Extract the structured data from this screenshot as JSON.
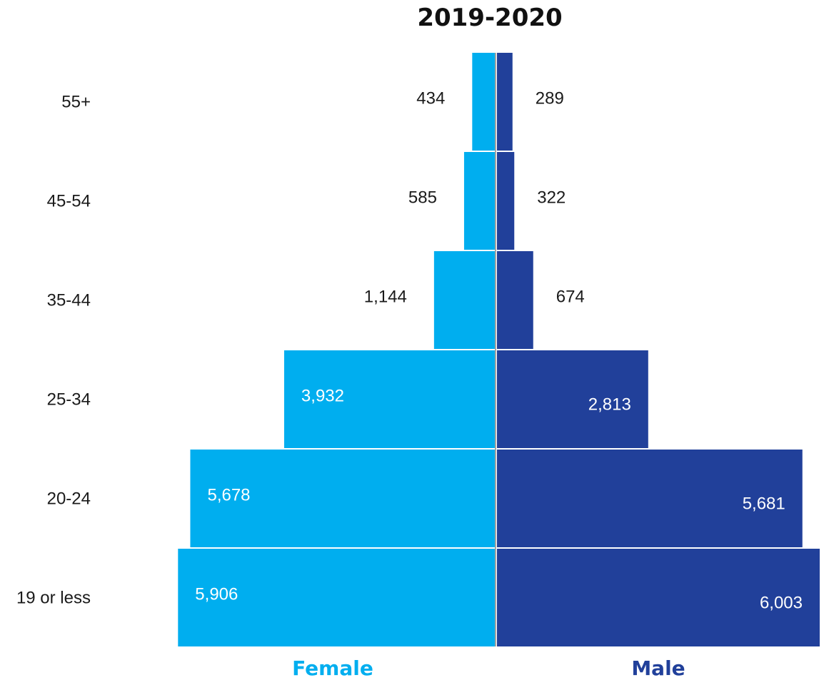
{
  "chart_data": {
    "type": "bar",
    "orientation": "horizontal-pyramid",
    "title": "2019-2020",
    "categories": [
      "55+",
      "45-54",
      "35-44",
      "25-34",
      "20-24",
      "19 or less"
    ],
    "series": [
      {
        "name": "Female",
        "color": "#00AEEF",
        "side": "left",
        "values": [
          434,
          585,
          1144,
          3932,
          5678,
          5906
        ],
        "labels": [
          "434",
          "585",
          "1,144",
          "3,932",
          "5,678",
          "5,906"
        ]
      },
      {
        "name": "Male",
        "color": "#21409A",
        "side": "right",
        "values": [
          289,
          322,
          674,
          2813,
          5681,
          6003
        ],
        "labels": [
          "289",
          "322",
          "674",
          "2,813",
          "5,681",
          "6,003"
        ]
      }
    ],
    "grid": false,
    "legend_position": "bottom"
  }
}
